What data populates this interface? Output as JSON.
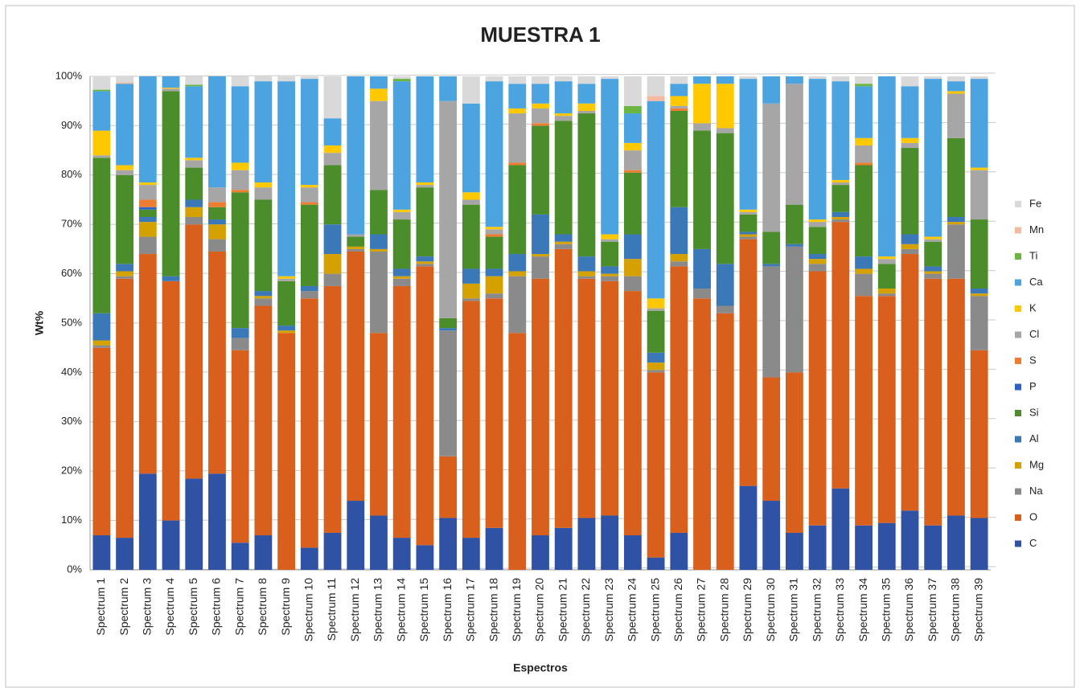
{
  "chart_data": {
    "type": "stacked_bar",
    "title": "MUESTRA 1",
    "y_label": "Wt%",
    "x_label": "Espectros",
    "categories": [
      "Spectrum 1",
      "Spectrum 2",
      "Spectrum 3",
      "Spectrum 4",
      "Spectrum 5",
      "Spectrum 6",
      "Spectrum 7",
      "Spectrum 8",
      "Spectrum 9",
      "Spectrum 10",
      "Spectrum 11",
      "Spectrum 12",
      "Spectrum 13",
      "Spectrum 14",
      "Spectrum 15",
      "Spectrum 16",
      "Spectrum 17",
      "Spectrum 18",
      "Spectrum 19",
      "Spectrum 20",
      "Spectrum 21",
      "Spectrum 22",
      "Spectrum 23",
      "Spectrum 24",
      "Spectrum 25",
      "Spectrum 26",
      "Spectrum 27",
      "Spectrum 28",
      "Spectrum 29",
      "Spectrum 30",
      "Spectrum 31",
      "Spectrum 32",
      "Spectrum 33",
      "Spectrum 34",
      "Spectrum 35",
      "Spectrum 36",
      "Spectrum 37",
      "Spectrum 38",
      "Spectrum 39"
    ],
    "series": [
      {
        "name": "C",
        "color": "#2f52a4",
        "values": [
          7,
          6.5,
          19.5,
          10,
          18.5,
          19.5,
          5.5,
          7,
          0,
          4.5,
          7.5,
          14,
          11,
          6.5,
          5,
          10.5,
          6.5,
          8.5,
          0,
          7,
          8.5,
          10.5,
          11,
          7,
          2.5,
          7.5,
          0,
          0,
          17,
          14,
          7.5,
          9,
          16.5,
          9,
          9.5,
          12,
          9,
          11,
          10.5
        ]
      },
      {
        "name": "O",
        "color": "#d8601c",
        "values": [
          38,
          52.5,
          44.5,
          48.5,
          51.5,
          45,
          39,
          46.5,
          48,
          50.5,
          50,
          50.5,
          37,
          51,
          56.5,
          12.5,
          48,
          46.5,
          48,
          52,
          56.5,
          48.5,
          47.5,
          49.5,
          37.5,
          54,
          55,
          52,
          50,
          25,
          32.5,
          51.5,
          54,
          46.5,
          46,
          52,
          50,
          48,
          34
        ]
      },
      {
        "name": "Na",
        "color": "#8a8a8a",
        "values": [
          0.5,
          0.5,
          3.5,
          0,
          1.5,
          2.5,
          2.5,
          1.5,
          0,
          1.5,
          2.5,
          0.5,
          16.5,
          1.5,
          0.5,
          25.5,
          0.5,
          1,
          11.5,
          4.5,
          1,
          0.5,
          1,
          3,
          0.5,
          1,
          2,
          1.5,
          0.5,
          22.5,
          25.5,
          1.5,
          0.5,
          4.5,
          0.5,
          1,
          1,
          11,
          11
        ]
      },
      {
        "name": "Mg",
        "color": "#d4a100",
        "values": [
          1,
          1,
          3,
          0,
          2,
          3,
          0,
          0.5,
          0.5,
          0,
          4,
          0.5,
          0.5,
          0.5,
          0.5,
          0,
          3,
          3.5,
          1,
          0.5,
          0.5,
          1,
          0.5,
          3.5,
          1.5,
          1.5,
          0,
          0,
          0.5,
          0,
          0,
          1,
          0.5,
          1,
          1,
          1,
          0.5,
          0.5,
          0.5
        ]
      },
      {
        "name": "Al",
        "color": "#3a78b8",
        "values": [
          5.5,
          1.5,
          1,
          1,
          1.5,
          1,
          2,
          1,
          1,
          1,
          6,
          0,
          3,
          1.5,
          1,
          0.5,
          3,
          1.5,
          3.5,
          8,
          1.5,
          3,
          1.5,
          5,
          2,
          9.5,
          8,
          8.5,
          0.5,
          0.5,
          0.5,
          1,
          1,
          2.5,
          0,
          2,
          1,
          1,
          1
        ]
      },
      {
        "name": "Si",
        "color": "#4b8c2b",
        "values": [
          31.5,
          18,
          1.5,
          37.5,
          6.5,
          2.5,
          27.5,
          18.5,
          9,
          16.5,
          12,
          2,
          9,
          10,
          14,
          2,
          13,
          6.5,
          18,
          18,
          23,
          29,
          5,
          12.5,
          8.5,
          19.5,
          24,
          26.5,
          3.5,
          6.5,
          8,
          5.5,
          5.5,
          18.5,
          5,
          17.5,
          5,
          16,
          14
        ]
      },
      {
        "name": "P",
        "color": "#2a63c2",
        "values": [
          0,
          0,
          0.5,
          0,
          0,
          0,
          0,
          0,
          0,
          0,
          0,
          0,
          0,
          0,
          0,
          0,
          0,
          0,
          0,
          0,
          0,
          0,
          0,
          0,
          0,
          0,
          0,
          0,
          0,
          0,
          0,
          0,
          0,
          0,
          0,
          0,
          0,
          0,
          0
        ]
      },
      {
        "name": "S",
        "color": "#ed7d31",
        "values": [
          0,
          0,
          1.5,
          0,
          0,
          1,
          0.5,
          0,
          0,
          0.5,
          0,
          0,
          0,
          0,
          0,
          0,
          0,
          0.5,
          0.5,
          0.5,
          0,
          0,
          0,
          0.5,
          0,
          0.5,
          0,
          0,
          0,
          0,
          0,
          0,
          0,
          0.5,
          0,
          0,
          0,
          0,
          0
        ]
      },
      {
        "name": "Cl",
        "color": "#a6a6a6",
        "values": [
          0.5,
          1,
          3,
          0.5,
          1.5,
          3,
          4,
          2.5,
          0.5,
          3,
          2.5,
          0.5,
          18,
          1.5,
          0.5,
          44,
          1,
          1,
          10,
          3,
          1,
          0.5,
          0.5,
          4,
          0.5,
          0.5,
          1.5,
          1,
          0.5,
          26,
          24.5,
          1,
          0.5,
          3.5,
          1,
          1,
          0.5,
          9,
          10
        ]
      },
      {
        "name": "K",
        "color": "#ffc800",
        "values": [
          5,
          1,
          0.5,
          0.2,
          0.5,
          0,
          1.5,
          1,
          0.5,
          0.5,
          1.5,
          0,
          2.5,
          0.5,
          0.5,
          0,
          1.5,
          0.5,
          1,
          1,
          0.5,
          1.5,
          1,
          1.5,
          2,
          2,
          8,
          9,
          0.5,
          0,
          0,
          0.5,
          0.5,
          1.5,
          0.5,
          1,
          0.5,
          0.5,
          0.5
        ]
      },
      {
        "name": "Ca",
        "color": "#4ba3e0",
        "values": [
          8,
          16.5,
          21.5,
          2.3,
          14.5,
          22.5,
          15.5,
          20.5,
          39.5,
          21.5,
          5.5,
          32,
          2.5,
          26,
          21.5,
          5,
          18,
          29.5,
          5,
          4,
          6.5,
          4,
          31.5,
          6,
          40,
          2.5,
          1.5,
          1.5,
          26.5,
          5.5,
          1.5,
          28.5,
          20,
          10.5,
          36.5,
          10.5,
          32,
          2,
          18
        ]
      },
      {
        "name": "Ti",
        "color": "#6bb541",
        "values": [
          0.3,
          0,
          0,
          0,
          0.3,
          0,
          0,
          0,
          0,
          0,
          0,
          0,
          0,
          0.5,
          0,
          0,
          0,
          0,
          0,
          0,
          0,
          0,
          0,
          1.5,
          0,
          0,
          0,
          0,
          0,
          0,
          0,
          0,
          0,
          0.5,
          0,
          0,
          0,
          0,
          0
        ]
      },
      {
        "name": "Mn",
        "color": "#f4b9a0",
        "values": [
          0,
          0.3,
          0,
          0,
          0,
          0,
          0,
          0,
          0,
          0,
          0,
          0,
          0,
          0,
          0,
          0,
          0,
          0,
          0,
          0,
          0,
          0,
          0,
          0,
          1,
          0,
          0,
          0,
          0,
          0,
          0,
          0,
          0,
          0,
          0,
          0,
          0,
          0,
          0
        ]
      },
      {
        "name": "Fe",
        "color": "#d9d9d9",
        "values": [
          2.7,
          1.2,
          0,
          0,
          1.7,
          0,
          2,
          1,
          1,
          0.5,
          8.5,
          0,
          0,
          0.5,
          0,
          0,
          5.5,
          1,
          1.5,
          1.5,
          1,
          1.5,
          0.5,
          6,
          4,
          1.5,
          0,
          0,
          0.5,
          0,
          0,
          0.5,
          1,
          1.5,
          0,
          2,
          0.5,
          1,
          0.5
        ]
      }
    ],
    "ylim": [
      0,
      100
    ],
    "yticks": [
      {
        "value": 0,
        "label": "0%"
      },
      {
        "value": 10,
        "label": "10%"
      },
      {
        "value": 20,
        "label": "20%"
      },
      {
        "value": 30,
        "label": "30%"
      },
      {
        "value": 40,
        "label": "40%"
      },
      {
        "value": 50,
        "label": "50%"
      },
      {
        "value": 60,
        "label": "60%"
      },
      {
        "value": 70,
        "label": "70%"
      },
      {
        "value": 80,
        "label": "80%"
      },
      {
        "value": 90,
        "label": "90%"
      },
      {
        "value": 100,
        "label": "100%"
      }
    ],
    "grid": true,
    "legend": "right"
  }
}
